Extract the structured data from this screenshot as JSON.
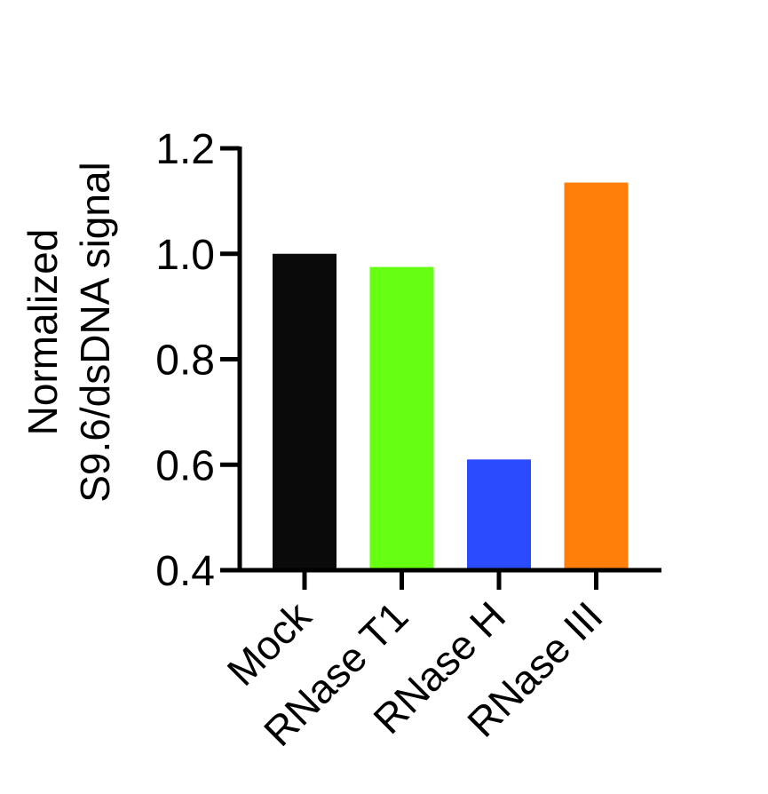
{
  "chart_data": {
    "type": "bar",
    "title": "",
    "xlabel": "",
    "ylabel_lines": [
      "Normalized",
      "S9.6/dsDNA signal"
    ],
    "ylim": [
      0.4,
      1.2
    ],
    "yticks": [
      0.4,
      0.6,
      0.8,
      1.0,
      1.2
    ],
    "ytick_labels": [
      "0.4",
      "0.6",
      "0.8",
      "1.0",
      "1.2"
    ],
    "categories": [
      "Mock",
      "RNase T1",
      "RNase H",
      "RNase III"
    ],
    "values": [
      1.0,
      0.975,
      0.61,
      1.135
    ],
    "colors": [
      "#0a0a0a",
      "#66ff11",
      "#2b4bff",
      "#ff7f0a"
    ],
    "grid": false,
    "legend": "none"
  }
}
